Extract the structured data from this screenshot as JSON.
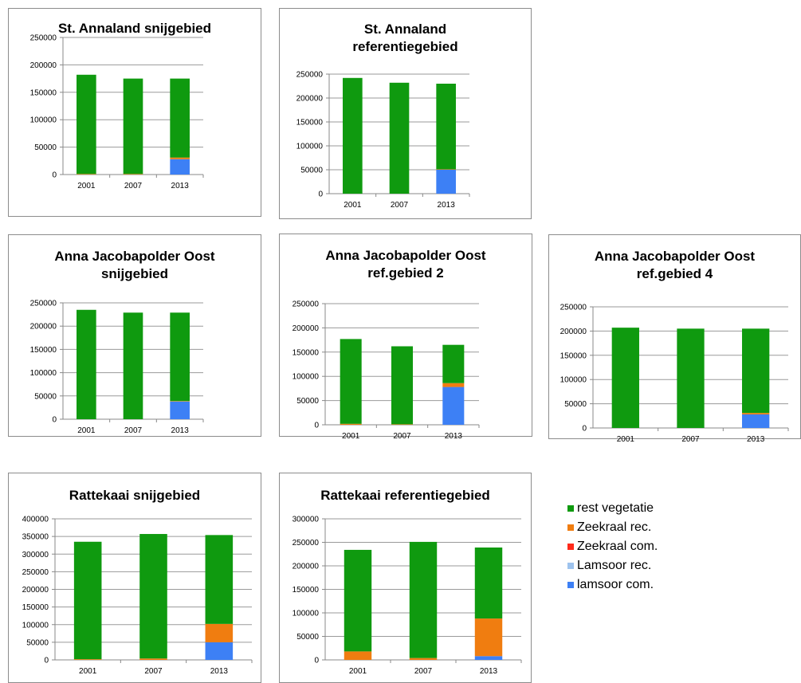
{
  "colors": {
    "rest_vegetatie": "#0f9a0f",
    "zeekraal_rec": "#f07d10",
    "zeekraal_com": "#ff2a1a",
    "lamsoor_rec": "#9ec3ee",
    "lamsoor_com": "#3d80f5"
  },
  "legend": [
    {
      "key": "rest_vegetatie",
      "label": "rest vegetatie"
    },
    {
      "key": "zeekraal_rec",
      "label": "Zeekraal rec."
    },
    {
      "key": "zeekraal_com",
      "label": "Zeekraal com."
    },
    {
      "key": "lamsoor_rec",
      "label": "Lamsoor rec."
    },
    {
      "key": "lamsoor_com",
      "label": "lamsoor com."
    }
  ],
  "chart_data": [
    {
      "type": "bar",
      "stacked": true,
      "title_lines": [
        "St. Annaland snijgebied"
      ],
      "categories": [
        "2001",
        "2007",
        "2013"
      ],
      "ylim": [
        0,
        250000
      ],
      "yticks": [
        0,
        50000,
        100000,
        150000,
        200000,
        250000
      ],
      "series": [
        {
          "name": "lamsoor com.",
          "key": "lamsoor_com",
          "values": [
            0,
            0,
            28000
          ]
        },
        {
          "name": "Lamsoor rec.",
          "key": "lamsoor_rec",
          "values": [
            0,
            0,
            0
          ]
        },
        {
          "name": "Zeekraal com.",
          "key": "zeekraal_com",
          "values": [
            0,
            0,
            0
          ]
        },
        {
          "name": "Zeekraal rec.",
          "key": "zeekraal_rec",
          "values": [
            1000,
            1000,
            3000
          ]
        },
        {
          "name": "rest vegetatie",
          "key": "rest_vegetatie",
          "values": [
            181000,
            174000,
            144000
          ]
        }
      ]
    },
    {
      "type": "bar",
      "stacked": true,
      "title_lines": [
        "St. Annaland",
        "referentiegebied"
      ],
      "categories": [
        "2001",
        "2007",
        "2013"
      ],
      "ylim": [
        0,
        250000
      ],
      "yticks": [
        0,
        50000,
        100000,
        150000,
        200000,
        250000
      ],
      "series": [
        {
          "name": "lamsoor com.",
          "key": "lamsoor_com",
          "values": [
            0,
            0,
            50000
          ]
        },
        {
          "name": "Lamsoor rec.",
          "key": "lamsoor_rec",
          "values": [
            0,
            0,
            0
          ]
        },
        {
          "name": "Zeekraal com.",
          "key": "zeekraal_com",
          "values": [
            0,
            0,
            0
          ]
        },
        {
          "name": "Zeekraal rec.",
          "key": "zeekraal_rec",
          "values": [
            0,
            0,
            1000
          ]
        },
        {
          "name": "rest vegetatie",
          "key": "rest_vegetatie",
          "values": [
            242000,
            232000,
            179000
          ]
        }
      ]
    },
    {
      "type": "bar",
      "stacked": true,
      "title_lines": [
        "Anna Jacobapolder Oost",
        "snijgebied"
      ],
      "categories": [
        "2001",
        "2007",
        "2013"
      ],
      "ylim": [
        0,
        250000
      ],
      "yticks": [
        0,
        50000,
        100000,
        150000,
        200000,
        250000
      ],
      "series": [
        {
          "name": "lamsoor com.",
          "key": "lamsoor_com",
          "values": [
            0,
            0,
            38000
          ]
        },
        {
          "name": "Lamsoor rec.",
          "key": "lamsoor_rec",
          "values": [
            0,
            0,
            0
          ]
        },
        {
          "name": "Zeekraal com.",
          "key": "zeekraal_com",
          "values": [
            0,
            0,
            0
          ]
        },
        {
          "name": "Zeekraal rec.",
          "key": "zeekraal_rec",
          "values": [
            0,
            0,
            1000
          ]
        },
        {
          "name": "rest vegetatie",
          "key": "rest_vegetatie",
          "values": [
            235000,
            229000,
            190000
          ]
        }
      ]
    },
    {
      "type": "bar",
      "stacked": true,
      "title_lines": [
        "Anna Jacobapolder Oost",
        "ref.gebied 2"
      ],
      "categories": [
        "2001",
        "2007",
        "2013"
      ],
      "ylim": [
        0,
        250000
      ],
      "yticks": [
        0,
        50000,
        100000,
        150000,
        200000,
        250000
      ],
      "series": [
        {
          "name": "lamsoor com.",
          "key": "lamsoor_com",
          "values": [
            0,
            0,
            78000
          ]
        },
        {
          "name": "Lamsoor rec.",
          "key": "lamsoor_rec",
          "values": [
            0,
            0,
            0
          ]
        },
        {
          "name": "Zeekraal com.",
          "key": "zeekraal_com",
          "values": [
            0,
            0,
            0
          ]
        },
        {
          "name": "Zeekraal rec.",
          "key": "zeekraal_rec",
          "values": [
            2000,
            1000,
            8000
          ]
        },
        {
          "name": "rest vegetatie",
          "key": "rest_vegetatie",
          "values": [
            175000,
            161000,
            79000
          ]
        }
      ]
    },
    {
      "type": "bar",
      "stacked": true,
      "title_lines": [
        "Anna Jacobapolder Oost",
        "ref.gebied 4"
      ],
      "categories": [
        "2001",
        "2007",
        "2013"
      ],
      "ylim": [
        0,
        250000
      ],
      "yticks": [
        0,
        50000,
        100000,
        150000,
        200000,
        250000
      ],
      "series": [
        {
          "name": "lamsoor com.",
          "key": "lamsoor_com",
          "values": [
            0,
            0,
            28000
          ]
        },
        {
          "name": "Lamsoor rec.",
          "key": "lamsoor_rec",
          "values": [
            0,
            0,
            0
          ]
        },
        {
          "name": "Zeekraal com.",
          "key": "zeekraal_com",
          "values": [
            0,
            0,
            0
          ]
        },
        {
          "name": "Zeekraal rec.",
          "key": "zeekraal_rec",
          "values": [
            0,
            0,
            3000
          ]
        },
        {
          "name": "rest vegetatie",
          "key": "rest_vegetatie",
          "values": [
            207000,
            205000,
            174000
          ]
        }
      ]
    },
    {
      "type": "bar",
      "stacked": true,
      "title_lines": [
        "Rattekaai snijgebied"
      ],
      "categories": [
        "2001",
        "2007",
        "2013"
      ],
      "ylim": [
        0,
        400000
      ],
      "yticks": [
        0,
        50000,
        100000,
        150000,
        200000,
        250000,
        300000,
        350000,
        400000
      ],
      "series": [
        {
          "name": "lamsoor com.",
          "key": "lamsoor_com",
          "values": [
            0,
            0,
            50000
          ]
        },
        {
          "name": "Lamsoor rec.",
          "key": "lamsoor_rec",
          "values": [
            0,
            0,
            0
          ]
        },
        {
          "name": "Zeekraal com.",
          "key": "zeekraal_com",
          "values": [
            0,
            0,
            0
          ]
        },
        {
          "name": "Zeekraal rec.",
          "key": "zeekraal_rec",
          "values": [
            2000,
            4000,
            52000
          ]
        },
        {
          "name": "rest vegetatie",
          "key": "rest_vegetatie",
          "values": [
            333000,
            353000,
            252000
          ]
        }
      ]
    },
    {
      "type": "bar",
      "stacked": true,
      "title_lines": [
        "Rattekaai referentiegebied"
      ],
      "categories": [
        "2001",
        "2007",
        "2013"
      ],
      "ylim": [
        0,
        300000
      ],
      "yticks": [
        0,
        50000,
        100000,
        150000,
        200000,
        250000,
        300000
      ],
      "series": [
        {
          "name": "lamsoor com.",
          "key": "lamsoor_com",
          "values": [
            0,
            0,
            8000
          ]
        },
        {
          "name": "Lamsoor rec.",
          "key": "lamsoor_rec",
          "values": [
            0,
            0,
            0
          ]
        },
        {
          "name": "Zeekraal com.",
          "key": "zeekraal_com",
          "values": [
            0,
            0,
            0
          ]
        },
        {
          "name": "Zeekraal rec.",
          "key": "zeekraal_rec",
          "values": [
            18000,
            4000,
            80000
          ]
        },
        {
          "name": "rest vegetatie",
          "key": "rest_vegetatie",
          "values": [
            216000,
            247000,
            151000
          ]
        }
      ]
    }
  ]
}
